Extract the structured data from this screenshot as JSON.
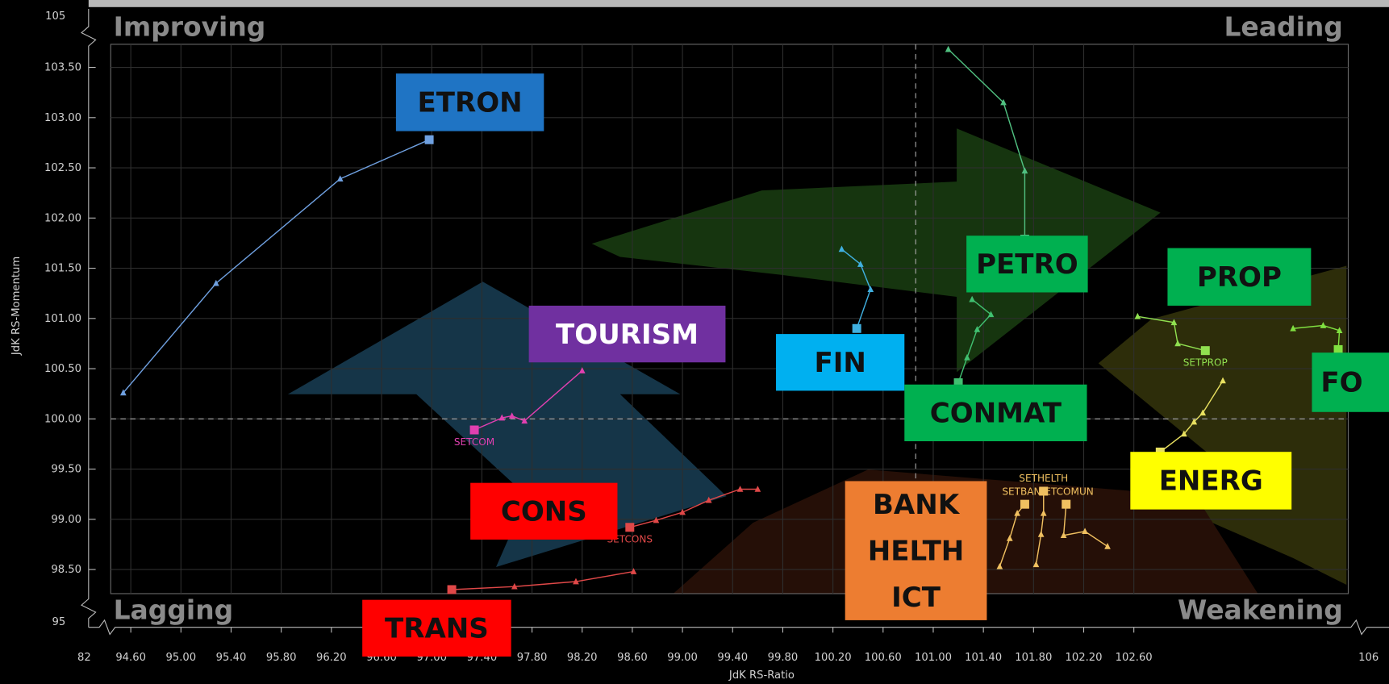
{
  "chart_data": {
    "type": "line",
    "x_label": "JdK RS-Ratio",
    "y_label": "JdK RS-Momentum",
    "quadrants": {
      "top_left": "Improving",
      "top_right": "Leading",
      "bottom_left": "Lagging",
      "bottom_right": "Weakening"
    },
    "xlim": [
      94.44,
      104.31
    ],
    "ylim": [
      98.26,
      103.73
    ],
    "x_break_labels": [
      82,
      106
    ],
    "y_break_labels": [
      95,
      105
    ],
    "reference_x": 100.86,
    "reference_y": 100,
    "grid": true,
    "xticks": [
      {
        "value": 94.6,
        "label": "94.60"
      },
      {
        "value": 95,
        "label": "95.00"
      },
      {
        "value": 95.4,
        "label": "95.40"
      },
      {
        "value": 95.8,
        "label": "95.80"
      },
      {
        "value": 96.2,
        "label": "96.20"
      },
      {
        "value": 96.6,
        "label": "96.60"
      },
      {
        "value": 97,
        "label": "97.00"
      },
      {
        "value": 97.4,
        "label": "97.40"
      },
      {
        "value": 97.8,
        "label": "97.80"
      },
      {
        "value": 98.2,
        "label": "98.20"
      },
      {
        "value": 98.6,
        "label": "98.60"
      },
      {
        "value": 99,
        "label": "99.00"
      },
      {
        "value": 99.4,
        "label": "99.40"
      },
      {
        "value": 99.8,
        "label": "99.80"
      },
      {
        "value": 100.2,
        "label": "100.20"
      },
      {
        "value": 100.6,
        "label": "100.60"
      },
      {
        "value": 101,
        "label": "101.00"
      },
      {
        "value": 101.4,
        "label": "101.40"
      },
      {
        "value": 101.8,
        "label": "101.80"
      },
      {
        "value": 102.2,
        "label": "102.20"
      },
      {
        "value": 102.6,
        "label": "102.60"
      }
    ],
    "yticks": [
      {
        "value": 98.5,
        "label": "98.50"
      },
      {
        "value": 99,
        "label": "99.00"
      },
      {
        "value": 99.5,
        "label": "99.50"
      },
      {
        "value": 100,
        "label": "100.00"
      },
      {
        "value": 100.5,
        "label": "100.50"
      },
      {
        "value": 101,
        "label": "101.00"
      },
      {
        "value": 101.5,
        "label": "101.50"
      },
      {
        "value": 102,
        "label": "102.00"
      },
      {
        "value": 102.5,
        "label": "102.50"
      },
      {
        "value": 103,
        "label": "103.00"
      },
      {
        "value": 103.5,
        "label": "103.50"
      }
    ],
    "series": [
      {
        "name": "ETRON",
        "color": "#6fa0e0",
        "box_color": "#1f74c4",
        "box_text_color": "#111111",
        "x": [
          94.54,
          95.28,
          96.27,
          96.98
        ],
        "y": [
          100.26,
          101.35,
          102.39,
          102.78
        ]
      },
      {
        "name": "TOURISM",
        "label": "SETCOM",
        "color": "#e040b0",
        "box_color": "#7030a0",
        "box_text_color": "#ffffff",
        "x": [
          98.2,
          97.74,
          97.64,
          97.56,
          97.34
        ],
        "y": [
          100.48,
          99.98,
          100.03,
          100.01,
          99.89
        ]
      },
      {
        "name": "FIN",
        "color": "#40b0e0",
        "box_color": "#00b0f0",
        "box_text_color": "#111111",
        "x": [
          100.27,
          100.42,
          100.5,
          100.39
        ],
        "y": [
          101.69,
          101.54,
          101.29,
          100.9
        ]
      },
      {
        "name": "PETRO",
        "color": "#50c080",
        "box_color": "#00b050",
        "box_text_color": "#111111",
        "x": [
          101.12,
          101.56,
          101.73,
          101.73
        ],
        "y": [
          103.68,
          103.15,
          102.47,
          101.79
        ]
      },
      {
        "name": "CONMAT",
        "color": "#40c070",
        "box_color": "#00b050",
        "box_text_color": "#111111",
        "x": [
          101.31,
          101.46,
          101.35,
          101.27,
          101.2
        ],
        "y": [
          101.19,
          101.04,
          100.89,
          100.61,
          100.36
        ]
      },
      {
        "name": "PROP",
        "label": "SETPROP",
        "color": "#90e050",
        "box_color": "#00b050",
        "box_text_color": "#111111",
        "x": [
          102.63,
          102.92,
          102.95,
          103.17
        ],
        "y": [
          101.02,
          100.96,
          100.75,
          100.68
        ]
      },
      {
        "name": "FO",
        "color": "#80e040",
        "box_color": "#00b050",
        "box_text_color": "#111111",
        "x": [
          103.87,
          104.11,
          104.24,
          104.23
        ],
        "y": [
          100.9,
          100.93,
          100.88,
          100.69
        ]
      },
      {
        "name": "ENERG",
        "color": "#e8e060",
        "box_color": "#ffff00",
        "box_text_color": "#111111",
        "x": [
          103.31,
          103.15,
          103.08,
          103.0,
          102.81
        ],
        "y": [
          100.38,
          100.06,
          99.97,
          99.85,
          99.67
        ]
      },
      {
        "name": "CONS",
        "label": "SETCONS",
        "color": "#e04848",
        "box_color": "#ff0000",
        "box_text_color": "#111111",
        "x": [
          99.6,
          99.46,
          99.21,
          99.0,
          98.79,
          98.58
        ],
        "y": [
          99.3,
          99.3,
          99.19,
          99.07,
          98.99,
          98.92
        ]
      },
      {
        "name": "TRANS",
        "color": "#e04848",
        "box_color": "#ff0000",
        "box_text_color": "#111111",
        "x": [
          98.61,
          98.15,
          97.66,
          97.16
        ],
        "y": [
          98.48,
          98.38,
          98.33,
          98.3
        ]
      },
      {
        "name": "BANK",
        "label": "SETBANK",
        "color": "#f0c060",
        "box_color": "#ed7d31",
        "box_text_color": "#111111",
        "x": [
          101.53,
          101.61,
          101.67,
          101.73
        ],
        "y": [
          98.53,
          98.81,
          99.06,
          99.15
        ]
      },
      {
        "name": "HELTH",
        "label": "SETHELTH",
        "color": "#f0c060",
        "box_color": "#ed7d31",
        "box_text_color": "#111111",
        "x": [
          101.82,
          101.86,
          101.88,
          101.88
        ],
        "y": [
          98.55,
          98.85,
          99.06,
          99.28
        ]
      },
      {
        "name": "ICT",
        "label": "SETCOMUN",
        "color": "#f0c060",
        "box_color": "#ed7d31",
        "box_text_color": "#111111",
        "x": [
          102.39,
          102.21,
          102.04,
          102.06
        ],
        "y": [
          98.73,
          98.88,
          98.84,
          99.15
        ]
      }
    ]
  }
}
